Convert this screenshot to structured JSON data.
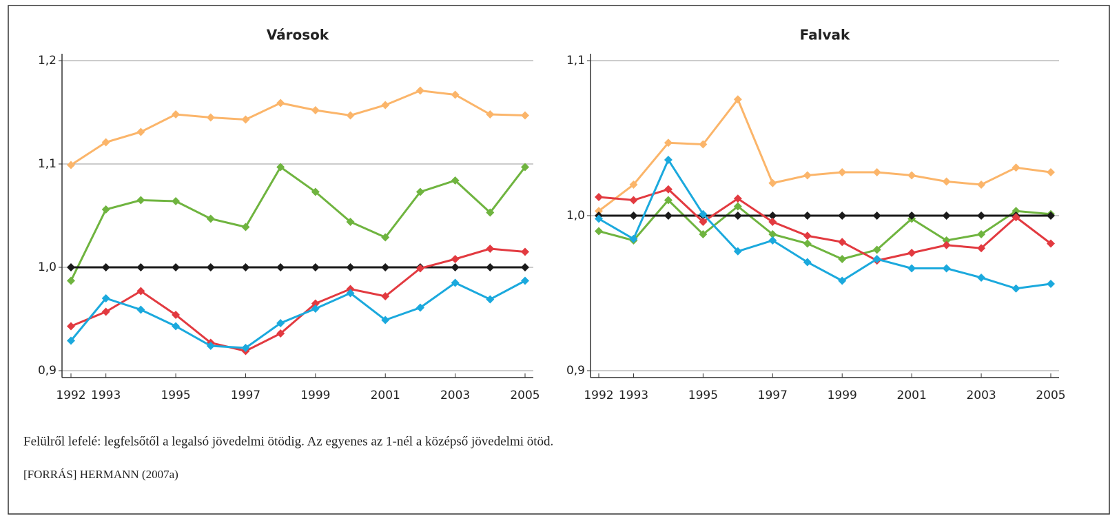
{
  "chart_data": [
    {
      "type": "line",
      "title": "Városok",
      "x": [
        1992,
        1993,
        1994,
        1995,
        1996,
        1997,
        1998,
        1999,
        2000,
        2001,
        2002,
        2003,
        2004,
        2005
      ],
      "xlim": [
        1992,
        2005
      ],
      "xticks": [
        1992,
        1993,
        1995,
        1997,
        1999,
        2001,
        2003,
        2005
      ],
      "ylim": [
        0.9,
        1.2
      ],
      "yticks": [
        {
          "value": 0.9,
          "label": "0,9"
        },
        {
          "value": 1.0,
          "label": "1,0"
        },
        {
          "value": 1.1,
          "label": "1,1"
        },
        {
          "value": 1.2,
          "label": "1,2"
        }
      ],
      "grid": true,
      "series": [
        {
          "color": "#fbb56a",
          "values": [
            1.099,
            1.121,
            1.131,
            1.148,
            1.145,
            1.143,
            1.159,
            1.152,
            1.147,
            1.157,
            1.171,
            1.167,
            1.148,
            1.147
          ]
        },
        {
          "color": "#6fb43f",
          "values": [
            0.987,
            1.056,
            1.065,
            1.064,
            1.047,
            1.039,
            1.097,
            1.073,
            1.044,
            1.029,
            1.073,
            1.084,
            1.053,
            1.097
          ]
        },
        {
          "color": "#1a1a1a",
          "values": [
            1.0,
            1.0,
            1.0,
            1.0,
            1.0,
            1.0,
            1.0,
            1.0,
            1.0,
            1.0,
            1.0,
            1.0,
            1.0,
            1.0
          ]
        },
        {
          "color": "#e23a40",
          "values": [
            0.943,
            0.957,
            0.977,
            0.954,
            0.927,
            0.919,
            0.936,
            0.965,
            0.979,
            0.972,
            0.999,
            1.008,
            1.018,
            1.015
          ]
        },
        {
          "color": "#1ba9dd",
          "values": [
            0.929,
            0.97,
            0.959,
            0.943,
            0.924,
            0.922,
            0.946,
            0.96,
            0.975,
            0.949,
            0.961,
            0.985,
            0.969,
            0.987
          ]
        }
      ]
    },
    {
      "type": "line",
      "title": "Falvak",
      "x": [
        1992,
        1993,
        1994,
        1995,
        1996,
        1997,
        1998,
        1999,
        2000,
        2001,
        2002,
        2003,
        2004,
        2005
      ],
      "xlim": [
        1992,
        2005
      ],
      "xticks": [
        1992,
        1993,
        1995,
        1997,
        1999,
        2001,
        2003,
        2005
      ],
      "ylim": [
        0.9,
        1.1
      ],
      "yticks": [
        {
          "value": 0.9,
          "label": "0,9"
        },
        {
          "value": 1.0,
          "label": "1,0"
        },
        {
          "value": 1.1,
          "label": "1,1"
        }
      ],
      "grid": true,
      "series": [
        {
          "color": "#fbb56a",
          "values": [
            1.003,
            1.02,
            1.047,
            1.046,
            1.075,
            1.021,
            1.026,
            1.028,
            1.028,
            1.026,
            1.022,
            1.02,
            1.031,
            1.028
          ]
        },
        {
          "color": "#6fb43f",
          "values": [
            0.99,
            0.984,
            1.01,
            0.988,
            1.006,
            0.988,
            0.982,
            0.972,
            0.978,
            0.998,
            0.984,
            0.988,
            1.003,
            1.001
          ]
        },
        {
          "color": "#1a1a1a",
          "values": [
            1.0,
            1.0,
            1.0,
            1.0,
            1.0,
            1.0,
            1.0,
            1.0,
            1.0,
            1.0,
            1.0,
            1.0,
            1.0,
            1.0
          ]
        },
        {
          "color": "#e23a40",
          "values": [
            1.012,
            1.01,
            1.017,
            0.996,
            1.011,
            0.996,
            0.987,
            0.983,
            0.971,
            0.976,
            0.981,
            0.979,
            0.999,
            0.982
          ]
        },
        {
          "color": "#1ba9dd",
          "values": [
            0.998,
            0.985,
            1.036,
            1.001,
            0.977,
            0.984,
            0.97,
            0.958,
            0.972,
            0.966,
            0.966,
            0.96,
            0.953,
            0.956
          ]
        }
      ]
    }
  ],
  "caption": "Felülről lefelé: legfelsőtől a legalsó jövedelmi ötödig. Az egyenes az 1-nél a középső jövedelmi ötöd.",
  "source": "[FORRÁS] HERMANN (2007a)"
}
